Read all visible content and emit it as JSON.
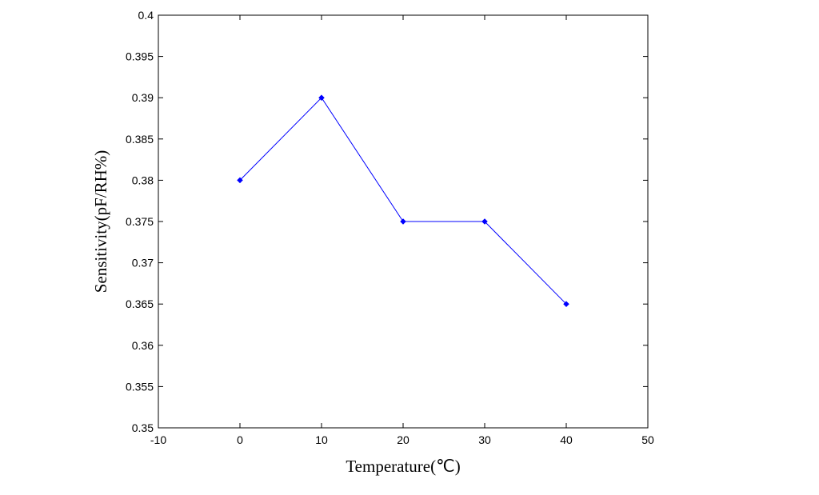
{
  "chart_data": {
    "type": "line",
    "title": "",
    "xlabel": "Temperature(℃)",
    "ylabel": "Sensitivity(pF/RH%)",
    "xlim": [
      -10,
      50
    ],
    "ylim": [
      0.35,
      0.4
    ],
    "x_ticks": [
      -10,
      0,
      10,
      20,
      30,
      40,
      50
    ],
    "x_tick_labels": [
      "-10",
      "0",
      "10",
      "20",
      "30",
      "40",
      "50"
    ],
    "y_ticks": [
      0.35,
      0.355,
      0.36,
      0.365,
      0.37,
      0.375,
      0.38,
      0.385,
      0.39,
      0.395,
      0.4
    ],
    "y_tick_labels": [
      "0.35",
      "0.355",
      "0.36",
      "0.365",
      "0.37",
      "0.375",
      "0.38",
      "0.385",
      "0.39",
      "0.395",
      "0.4"
    ],
    "grid": false,
    "series": [
      {
        "x": [
          0,
          10,
          20,
          30,
          40
        ],
        "y": [
          0.38,
          0.39,
          0.375,
          0.375,
          0.365
        ],
        "color": "#0000ff",
        "marker": "diamond"
      }
    ]
  }
}
